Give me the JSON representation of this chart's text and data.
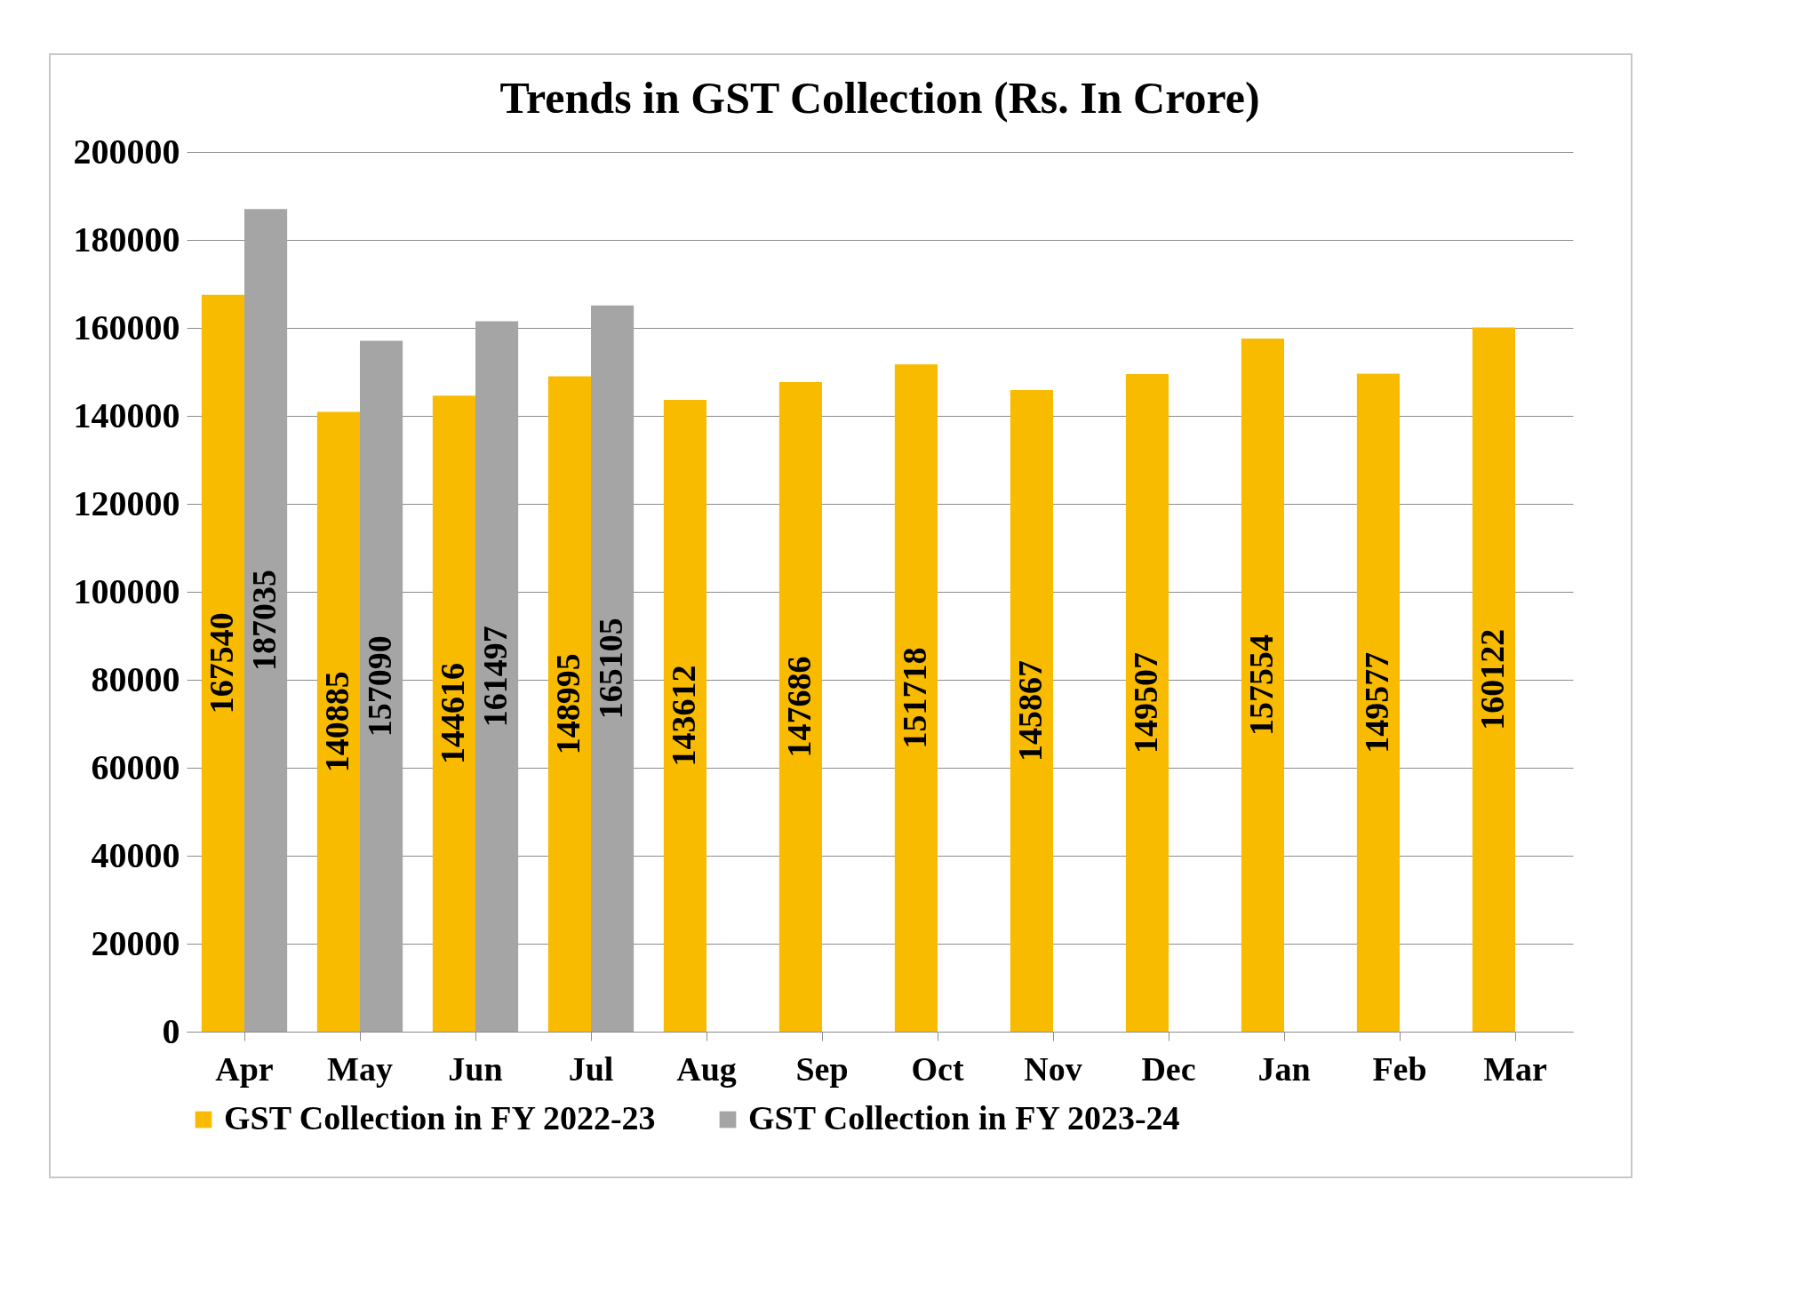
{
  "chart_data": {
    "type": "bar",
    "title": "Trends in GST Collection (Rs. In Crore)",
    "categories": [
      "Apr",
      "May",
      "Jun",
      "Jul",
      "Aug",
      "Sep",
      "Oct",
      "Nov",
      "Dec",
      "Jan",
      "Feb",
      "Mar"
    ],
    "series": [
      {
        "name": "GST Collection in FY 2022-23",
        "color": "#f9bb00",
        "values": [
          167540,
          140885,
          144616,
          148995,
          143612,
          147686,
          151718,
          145867,
          149507,
          157554,
          149577,
          160122
        ]
      },
      {
        "name": "GST Collection in FY 2023-24",
        "color": "#a5a5a5",
        "values": [
          187035,
          157090,
          161497,
          165105,
          null,
          null,
          null,
          null,
          null,
          null,
          null,
          null
        ]
      }
    ],
    "ylim": [
      0,
      200000
    ],
    "yticks": [
      0,
      20000,
      40000,
      60000,
      80000,
      100000,
      120000,
      140000,
      160000,
      180000,
      200000
    ],
    "grid": "y",
    "legend": "bottom",
    "data_labels": true
  }
}
